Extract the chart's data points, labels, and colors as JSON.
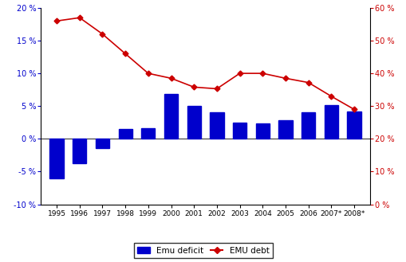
{
  "years": [
    "1995",
    "1996",
    "1997",
    "1998",
    "1999",
    "2000",
    "2001",
    "2002",
    "2003",
    "2004",
    "2005",
    "2006",
    "2007*",
    "2008*"
  ],
  "emu_deficit": [
    -6.0,
    -3.7,
    -1.4,
    1.5,
    1.6,
    6.9,
    5.0,
    4.0,
    2.5,
    2.3,
    2.8,
    4.0,
    5.2,
    4.2
  ],
  "emu_debt": [
    56.0,
    57.0,
    52.0,
    46.0,
    40.0,
    38.5,
    35.8,
    35.3,
    40.0,
    40.0,
    38.5,
    37.2,
    33.0,
    29.0
  ],
  "bar_color": "#0000CC",
  "line_color": "#CC0000",
  "marker_color": "#CC0000",
  "left_ylim": [
    -10,
    20
  ],
  "right_ylim": [
    0,
    60
  ],
  "left_yticks": [
    -10,
    -5,
    0,
    5,
    10,
    15,
    20
  ],
  "right_yticks": [
    0,
    10,
    20,
    30,
    40,
    50,
    60
  ],
  "left_tick_labels": [
    "-10 %",
    "-5 %",
    "0 %",
    "5 %",
    "10 %",
    "15 %",
    "20 %"
  ],
  "right_tick_labels": [
    "0 %",
    "10 %",
    "20 %",
    "30 %",
    "40 %",
    "50 %",
    "60 %"
  ],
  "legend_label_bar": "Emu deficit",
  "legend_label_line": "EMU debt",
  "left_axis_color": "#0000CC",
  "right_axis_color": "#CC0000",
  "bar_width": 0.6,
  "figwidth": 5.1,
  "figheight": 3.29,
  "dpi": 100
}
